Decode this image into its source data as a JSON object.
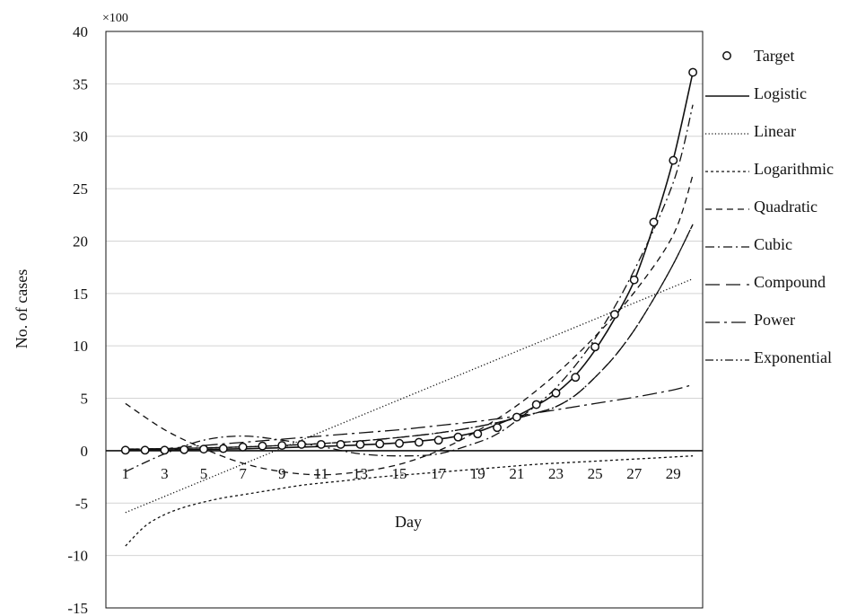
{
  "chart_data": {
    "type": "line",
    "scale_note": "×100",
    "xlabel": "Day",
    "ylabel": "No. of cases",
    "xlim": [
      0,
      30.5
    ],
    "ylim": [
      -15,
      40
    ],
    "yticks": [
      -15,
      -10,
      -5,
      0,
      5,
      10,
      15,
      20,
      25,
      30,
      35,
      40
    ],
    "xticks": [
      1,
      3,
      5,
      7,
      9,
      11,
      13,
      15,
      17,
      19,
      21,
      23,
      25,
      27,
      29
    ],
    "grid": "horizontal",
    "legend_position": "right",
    "series": [
      {
        "name": "Target",
        "style": "markers",
        "color": "#111111",
        "x": [
          1,
          2,
          3,
          4,
          5,
          6,
          7,
          8,
          9,
          10,
          11,
          12,
          13,
          14,
          15,
          16,
          17,
          18,
          19,
          20,
          21,
          22,
          23,
          24,
          25,
          26,
          27,
          28,
          29,
          30
        ],
        "y": [
          0.05,
          0.05,
          0.05,
          0.1,
          0.15,
          0.2,
          0.35,
          0.45,
          0.5,
          0.6,
          0.6,
          0.6,
          0.6,
          0.65,
          0.7,
          0.8,
          1.0,
          1.3,
          1.6,
          2.2,
          3.2,
          4.4,
          5.5,
          7.0,
          9.9,
          13.0,
          16.3,
          21.8,
          27.7,
          36.1
        ]
      },
      {
        "name": "Logistic",
        "style": "solid",
        "color": "#111111",
        "x": [
          1,
          3,
          5,
          7,
          9,
          11,
          13,
          15,
          17,
          18,
          19,
          20,
          21,
          22,
          23,
          24,
          25,
          26,
          27,
          28,
          29,
          30
        ],
        "y": [
          0.05,
          0.08,
          0.12,
          0.18,
          0.28,
          0.4,
          0.55,
          0.75,
          1.1,
          1.4,
          1.8,
          2.5,
          3.3,
          4.3,
          5.5,
          7.2,
          9.6,
          12.6,
          16.2,
          21.5,
          27.8,
          36.1
        ]
      },
      {
        "name": "Linear",
        "style": "dotted",
        "color": "#111111",
        "x": [
          1,
          30
        ],
        "y": [
          -5.9,
          16.4
        ]
      },
      {
        "name": "Logarithmic",
        "style": "short-dash",
        "color": "#111111",
        "x": [
          1,
          2,
          3,
          4,
          5,
          6,
          7,
          8,
          10,
          12,
          14,
          16,
          18,
          20,
          22,
          24,
          26,
          28,
          30
        ],
        "y": [
          -9.1,
          -7.2,
          -6.1,
          -5.4,
          -4.9,
          -4.5,
          -4.2,
          -3.9,
          -3.3,
          -2.9,
          -2.5,
          -2.2,
          -1.9,
          -1.6,
          -1.3,
          -1.1,
          -0.9,
          -0.7,
          -0.5
        ]
      },
      {
        "name": "Quadratic",
        "style": "dash",
        "color": "#111111",
        "x": [
          1,
          3,
          5,
          7,
          9,
          11,
          13,
          15,
          17,
          19,
          21,
          23,
          25,
          27,
          29,
          30
        ],
        "y": [
          4.5,
          2.0,
          0.2,
          -1.2,
          -2.0,
          -2.3,
          -2.0,
          -1.3,
          0.0,
          1.9,
          4.3,
          7.3,
          10.9,
          15.1,
          20.6,
          26.3
        ]
      },
      {
        "name": "Cubic",
        "style": "dash-dot",
        "color": "#111111",
        "x": [
          1,
          3,
          5,
          7,
          9,
          11,
          13,
          15,
          17,
          19,
          20,
          21,
          23,
          25,
          27,
          29,
          30
        ],
        "y": [
          -2.0,
          -0.3,
          1.0,
          1.4,
          1.0,
          0.4,
          -0.3,
          -0.5,
          -0.3,
          0.8,
          1.6,
          2.9,
          6.0,
          10.7,
          17.2,
          25.6,
          33.0
        ]
      },
      {
        "name": "Compound",
        "style": "long-dash",
        "color": "#111111",
        "x": [
          1,
          3,
          5,
          7,
          9,
          11,
          13,
          15,
          17,
          19,
          21,
          22,
          23,
          24,
          25,
          26,
          27,
          28,
          29,
          30
        ],
        "y": [
          0.15,
          0.2,
          0.27,
          0.36,
          0.5,
          0.68,
          0.93,
          1.27,
          1.7,
          2.3,
          3.1,
          3.6,
          4.2,
          5.3,
          7.0,
          9.0,
          11.5,
          14.5,
          17.8,
          21.6
        ]
      },
      {
        "name": "Power",
        "style": "long-dash-dot",
        "color": "#111111",
        "x": [
          1,
          3,
          5,
          7,
          9,
          11,
          13,
          15,
          17,
          19,
          21,
          23,
          25,
          27,
          29,
          30
        ],
        "y": [
          0.0,
          0.2,
          0.5,
          0.8,
          1.1,
          1.4,
          1.7,
          2.0,
          2.4,
          2.8,
          3.3,
          3.9,
          4.5,
          5.1,
          5.8,
          6.3
        ]
      },
      {
        "name": "Exponential",
        "style": "dash-dot-dot",
        "color": "#111111",
        "x": [
          1,
          3,
          5,
          7,
          9,
          11,
          13,
          15,
          17,
          19,
          21,
          22,
          23,
          24,
          25,
          26,
          27,
          28,
          29,
          30
        ],
        "y": [
          0.15,
          0.2,
          0.27,
          0.36,
          0.5,
          0.68,
          0.93,
          1.27,
          1.7,
          2.3,
          3.1,
          3.6,
          4.2,
          5.3,
          7.0,
          9.0,
          11.5,
          14.5,
          17.8,
          21.6
        ]
      }
    ]
  }
}
